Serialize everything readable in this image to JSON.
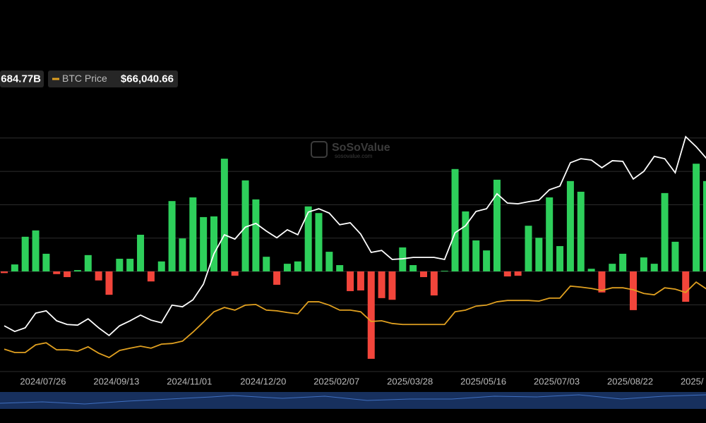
{
  "chart_data": {
    "type": "bar",
    "categories": [
      null,
      null,
      null,
      null,
      "2024/07/26",
      null,
      null,
      null,
      null,
      null,
      null,
      "2024/09/13",
      null,
      null,
      null,
      null,
      null,
      null,
      "2024/11/01",
      null,
      null,
      null,
      null,
      null,
      null,
      "2024/12/20",
      null,
      null,
      null,
      null,
      null,
      null,
      "2025/02/07",
      null,
      null,
      null,
      null,
      null,
      null,
      "2025/03/28",
      null,
      null,
      null,
      null,
      null,
      null,
      "2025/05/16",
      null,
      null,
      null,
      null,
      null,
      null,
      "2025/07/03",
      null,
      null,
      null,
      null,
      null,
      null,
      "2025/08/22",
      null,
      null,
      null,
      null,
      null,
      null,
      "2025/"
    ],
    "values": [
      -0.05,
      0.21,
      1.04,
      1.23,
      0.53,
      -0.08,
      -0.17,
      0.04,
      0.49,
      -0.27,
      -0.7,
      0.38,
      0.38,
      1.1,
      -0.3,
      0.3,
      2.11,
      0.99,
      2.22,
      1.63,
      1.65,
      3.38,
      -0.13,
      2.73,
      2.16,
      0.44,
      -0.4,
      0.23,
      0.3,
      1.95,
      1.75,
      0.59,
      0.19,
      -0.59,
      -0.57,
      -2.62,
      -0.8,
      -0.85,
      0.72,
      0.19,
      -0.17,
      -0.72,
      0.02,
      3.07,
      1.8,
      0.93,
      0.63,
      2.75,
      -0.15,
      -0.13,
      1.37,
      1.01,
      2.22,
      0.76,
      2.71,
      2.39,
      0.08,
      -0.63,
      0.23,
      0.53,
      -1.16,
      0.42,
      0.23,
      2.35,
      0.89,
      -0.91,
      3.23,
      2.71
    ],
    "positive_color": "#2ecf5b",
    "negative_color": "#f2453b",
    "series": [
      {
        "color": "#ffffff",
        "legend_value": "684.77B",
        "values": [
          -1.63,
          -1.8,
          -1.69,
          -1.25,
          -1.18,
          -1.48,
          -1.59,
          -1.61,
          -1.42,
          -1.69,
          -1.92,
          -1.63,
          -1.48,
          -1.31,
          -1.46,
          -1.54,
          -1.01,
          -1.06,
          -0.85,
          -0.38,
          0.53,
          1.1,
          0.97,
          1.33,
          1.44,
          1.21,
          1.01,
          1.25,
          1.1,
          1.78,
          1.88,
          1.75,
          1.4,
          1.46,
          1.12,
          0.57,
          0.63,
          0.36,
          0.38,
          0.42,
          0.42,
          0.42,
          0.36,
          1.16,
          1.37,
          1.8,
          1.88,
          2.33,
          2.05,
          2.03,
          2.09,
          2.14,
          2.45,
          2.56,
          3.26,
          3.38,
          3.34,
          3.11,
          3.32,
          3.3,
          2.77,
          3.0,
          3.45,
          3.38,
          2.96,
          4.04,
          3.74,
          3.38
        ]
      },
      {
        "name": "BTC Price",
        "color": "#e0a020",
        "legend_value": "$66,040.66",
        "values": [
          -2.33,
          -2.43,
          -2.43,
          -2.2,
          -2.14,
          -2.35,
          -2.35,
          -2.39,
          -2.26,
          -2.45,
          -2.58,
          -2.37,
          -2.3,
          -2.24,
          -2.3,
          -2.18,
          -2.16,
          -2.09,
          -1.82,
          -1.52,
          -1.21,
          -1.08,
          -1.16,
          -1.01,
          -0.99,
          -1.16,
          -1.18,
          -1.23,
          -1.27,
          -0.91,
          -0.91,
          -1.01,
          -1.16,
          -1.16,
          -1.21,
          -1.5,
          -1.48,
          -1.56,
          -1.59,
          -1.59,
          -1.59,
          -1.59,
          -1.59,
          -1.21,
          -1.16,
          -1.04,
          -1.01,
          -0.91,
          -0.87,
          -0.87,
          -0.87,
          -0.89,
          -0.8,
          -0.8,
          -0.44,
          -0.47,
          -0.51,
          -0.57,
          -0.49,
          -0.49,
          -0.55,
          -0.66,
          -0.7,
          -0.49,
          -0.53,
          -0.63,
          -0.32,
          -0.53
        ]
      }
    ],
    "ylim": [
      -3.2,
      4.3
    ],
    "yticks": [
      -3,
      -2,
      -1,
      0,
      1,
      2,
      3,
      4
    ],
    "grid": true,
    "watermark": {
      "title": "SoSoValue",
      "subtitle": "sosovalue.com"
    }
  }
}
